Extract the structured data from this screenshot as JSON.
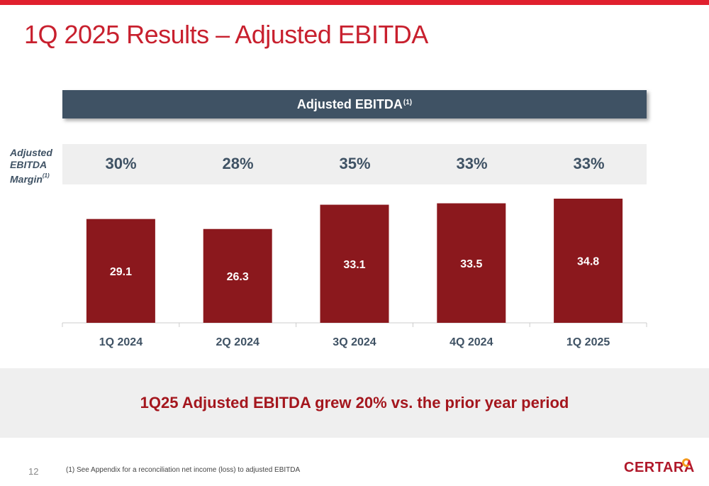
{
  "slide": {
    "title": "1Q 2025 Results – Adjusted EBITDA",
    "page_number": "12",
    "footnote": "(1)   See Appendix for a reconciliation net income (loss) to adjusted EBITDA",
    "takeaway": "1Q25 Adjusted EBITDA grew 20% vs. the prior year period",
    "logo_text": "CERTARA"
  },
  "header": {
    "label": "Adjusted EBITDA",
    "superscript": "(1)"
  },
  "margin_row": {
    "label_lines": [
      "Adjusted",
      "EBITDA",
      "Margin"
    ],
    "label_superscript": "(1)",
    "values": [
      "30%",
      "28%",
      "35%",
      "33%",
      "33%"
    ]
  },
  "chart_data": {
    "type": "bar",
    "title": "Adjusted EBITDA",
    "categories": [
      "1Q 2024",
      "2Q 2024",
      "3Q 2024",
      "4Q 2024",
      "1Q 2025"
    ],
    "values": [
      29.1,
      26.3,
      33.1,
      33.5,
      34.8
    ],
    "data_labels": [
      "29.1",
      "26.3",
      "33.1",
      "33.5",
      "34.8"
    ],
    "ylim": [
      0,
      36
    ],
    "grid": false,
    "colors": {
      "bar": "#8b181d",
      "bar_label": "#ffffff",
      "tick_label": "#3f5264",
      "axis": "#cccccc"
    }
  },
  "colors": {
    "accent_red": "#e0202e",
    "title_red": "#c8202e",
    "header_bg": "#3f5264",
    "band_bg": "#efefef",
    "takeaway_red": "#a4161d"
  }
}
